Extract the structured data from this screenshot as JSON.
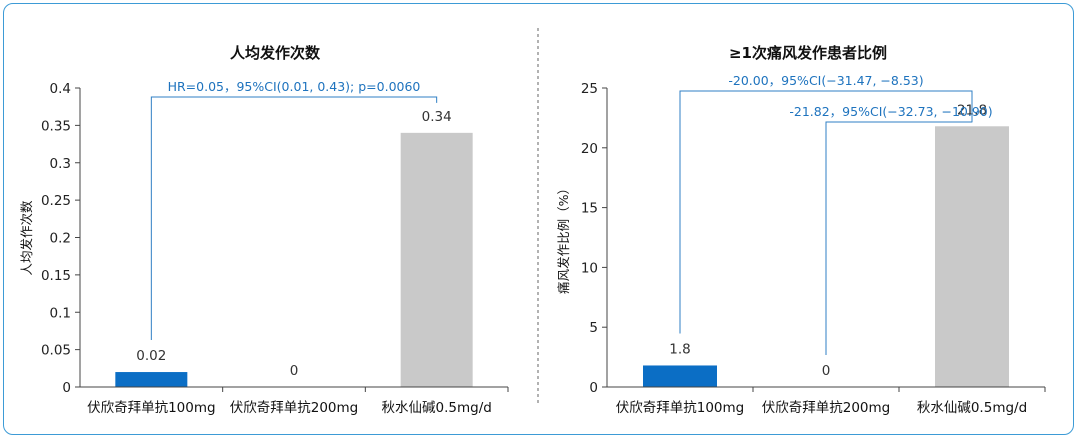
{
  "chart_data": [
    {
      "type": "bar",
      "title": "人均发作次数",
      "xlabel": "",
      "ylabel": "人均发作次数",
      "categories": [
        "伏欣奇拜单抗100mg",
        "伏欣奇拜单抗200mg",
        "秋水仙碱0.5mg/d"
      ],
      "values": [
        0.02,
        0,
        0.34
      ],
      "value_labels": [
        "0.02",
        "0",
        "0.34"
      ],
      "colors": [
        "#0b6ec5",
        "#0b6ec5",
        "#c9c9c9"
      ],
      "ylim": [
        0,
        0.4
      ],
      "yticks": [
        "0",
        "0.05",
        "0.1",
        "0.15",
        "0.2",
        "0.25",
        "0.3",
        "0.35",
        "0.4"
      ],
      "annotations": [
        {
          "from": 0,
          "to": 2,
          "text": "HR=0.05，95%CI(0.01, 0.43); p=0.0060"
        }
      ],
      "grid": false
    },
    {
      "type": "bar",
      "title": "≥1次痛风发作患者比例",
      "xlabel": "",
      "ylabel": "痛风发作比例（%）",
      "categories": [
        "伏欣奇拜单抗100mg",
        "伏欣奇拜单抗200mg",
        "秋水仙碱0.5mg/d"
      ],
      "values": [
        1.8,
        0,
        21.8
      ],
      "value_labels": [
        "1.8",
        "0",
        "21.8"
      ],
      "colors": [
        "#0b6ec5",
        "#0b6ec5",
        "#c9c9c9"
      ],
      "ylim": [
        0,
        25
      ],
      "yticks": [
        "0",
        "5",
        "10",
        "15",
        "20",
        "25"
      ],
      "annotations": [
        {
          "from": 0,
          "to": 2,
          "text": "-20.00，95%CI(−31.47, −8.53)"
        },
        {
          "from": 1,
          "to": 2,
          "text": "-21.82，95%CI(−32.73, −10.90)"
        }
      ],
      "grid": false
    }
  ]
}
